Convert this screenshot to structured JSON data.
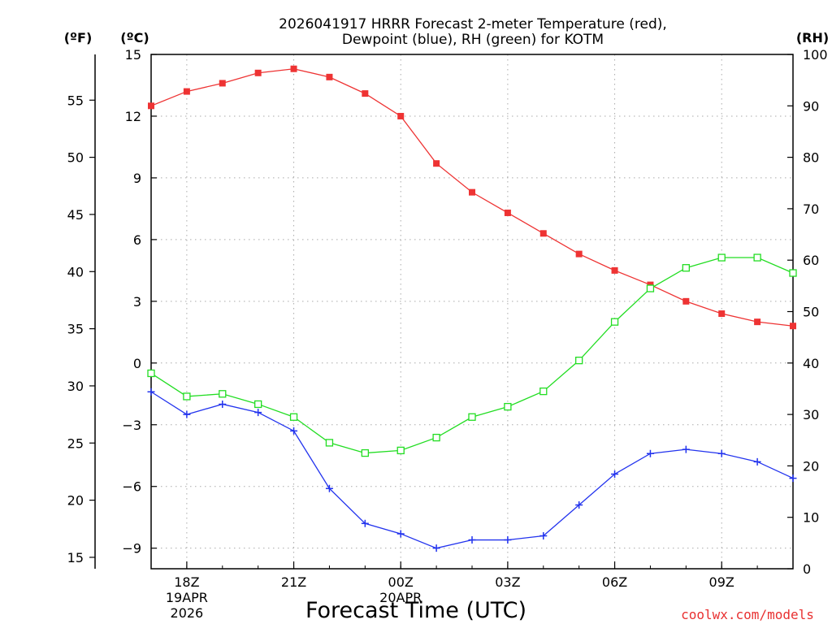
{
  "chart_data": {
    "type": "line",
    "title_line1": "2026041917 HRRR Forecast 2-meter Temperature (red),",
    "title_line2": "Dewpoint (blue), RH (green) for KOTM",
    "xlabel": "Forecast Time (UTC)",
    "credit": "coolwx.com/models",
    "unit_labels": {
      "fahrenheit": "(ºF)",
      "celsius": "(ºC)",
      "rh": "(RH)"
    },
    "x_ticks": [
      {
        "hour": 1,
        "label": "18Z",
        "sub1": "19APR",
        "sub2": "2026"
      },
      {
        "hour": 4,
        "label": "21Z",
        "sub1": "",
        "sub2": ""
      },
      {
        "hour": 7,
        "label": "00Z",
        "sub1": "20APR",
        "sub2": ""
      },
      {
        "hour": 10,
        "label": "03Z",
        "sub1": "",
        "sub2": ""
      },
      {
        "hour": 13,
        "label": "06Z",
        "sub1": "",
        "sub2": ""
      },
      {
        "hour": 16,
        "label": "09Z",
        "sub1": "",
        "sub2": ""
      }
    ],
    "xlim": [
      0,
      18
    ],
    "ylim_celsius": [
      -10,
      15
    ],
    "ylim_rh": [
      0,
      100
    ],
    "celsius_ticks": [
      "15",
      "12",
      "9",
      "6",
      "3",
      "0",
      "−3",
      "−6",
      "−9"
    ],
    "celsius_tick_values": [
      15,
      12,
      9,
      6,
      3,
      0,
      -3,
      -6,
      -9
    ],
    "fahrenheit_ticks": [
      "55",
      "50",
      "45",
      "40",
      "35",
      "30",
      "25",
      "20",
      "15"
    ],
    "fahrenheit_tick_values": [
      55,
      50,
      45,
      40,
      35,
      30,
      25,
      20,
      15
    ],
    "rh_ticks": [
      "100",
      "90",
      "80",
      "70",
      "60",
      "50",
      "40",
      "30",
      "20",
      "10",
      "0"
    ],
    "rh_tick_values": [
      100,
      90,
      80,
      70,
      60,
      50,
      40,
      30,
      20,
      10,
      0
    ],
    "series": [
      {
        "name": "2-meter Temperature",
        "color": "#ee3333",
        "axis": "celsius",
        "marker": "filled-square",
        "values": [
          12.5,
          13.2,
          13.6,
          14.1,
          14.3,
          13.9,
          13.1,
          12.0,
          9.7,
          8.3,
          7.3,
          6.3,
          5.3,
          4.5,
          3.8,
          3.0,
          2.4,
          2.0,
          1.8
        ]
      },
      {
        "name": "Dewpoint",
        "color": "#2233ee",
        "axis": "celsius",
        "marker": "plus",
        "values": [
          -1.4,
          -2.5,
          -2.0,
          -2.4,
          -3.3,
          -6.1,
          -7.8,
          -8.3,
          -9.0,
          -8.6,
          -8.6,
          -8.4,
          -6.9,
          -5.4,
          -4.4,
          -4.2,
          -4.4,
          -4.8,
          -5.6
        ]
      },
      {
        "name": "RH",
        "color": "#22dd22",
        "axis": "rh",
        "marker": "open-square",
        "values": [
          38,
          33.5,
          34,
          32,
          29.5,
          24.5,
          22.5,
          23,
          25.5,
          29.5,
          31.5,
          34.5,
          40.5,
          48,
          54.5,
          58.5,
          60.5,
          60.5,
          57.5
        ]
      }
    ]
  }
}
